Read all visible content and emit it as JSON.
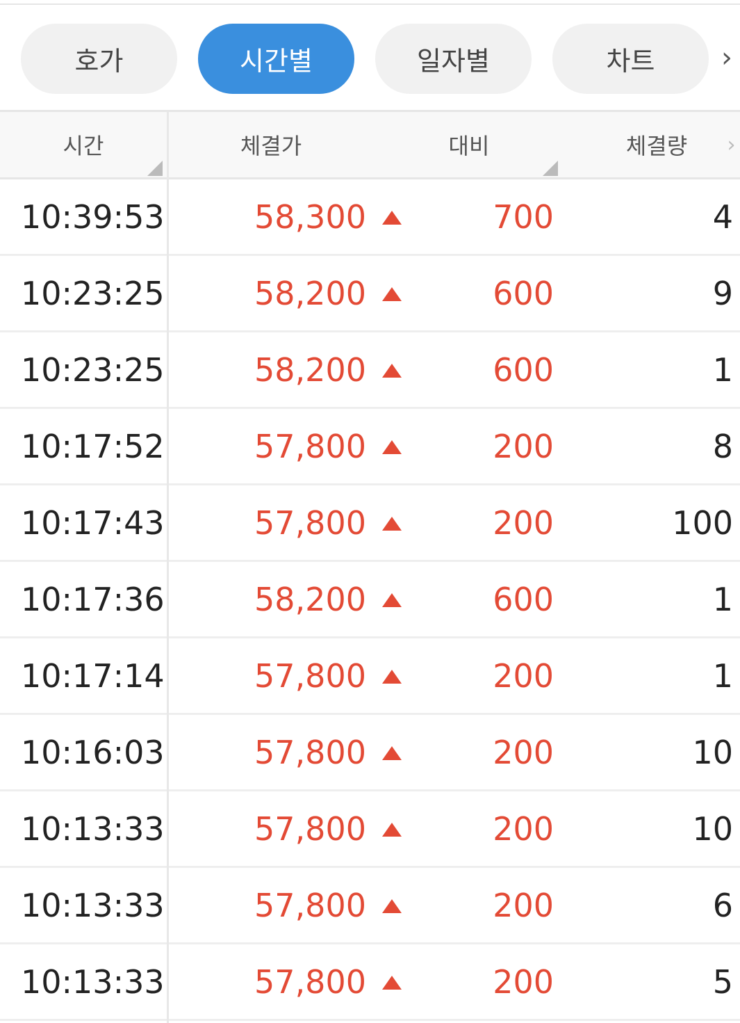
{
  "tabs": [
    {
      "label": "호가",
      "active": false
    },
    {
      "label": "시간별",
      "active": true
    },
    {
      "label": "일자별",
      "active": false
    },
    {
      "label": "차트",
      "active": false
    }
  ],
  "tabs_more_icon": "chevron-right-icon",
  "columns": [
    "시간",
    "체결가",
    "대비",
    "체결량"
  ],
  "colors": {
    "up": "#e34a35",
    "accent": "#3a8fde"
  },
  "rows": [
    {
      "time": "10:39:53",
      "price": "58,300",
      "diff": "700",
      "volume": "4"
    },
    {
      "time": "10:23:25",
      "price": "58,200",
      "diff": "600",
      "volume": "9"
    },
    {
      "time": "10:23:25",
      "price": "58,200",
      "diff": "600",
      "volume": "1"
    },
    {
      "time": "10:17:52",
      "price": "57,800",
      "diff": "200",
      "volume": "8"
    },
    {
      "time": "10:17:43",
      "price": "57,800",
      "diff": "200",
      "volume": "100"
    },
    {
      "time": "10:17:36",
      "price": "58,200",
      "diff": "600",
      "volume": "1"
    },
    {
      "time": "10:17:14",
      "price": "57,800",
      "diff": "200",
      "volume": "1"
    },
    {
      "time": "10:16:03",
      "price": "57,800",
      "diff": "200",
      "volume": "10"
    },
    {
      "time": "10:13:33",
      "price": "57,800",
      "diff": "200",
      "volume": "10"
    },
    {
      "time": "10:13:33",
      "price": "57,800",
      "diff": "200",
      "volume": "6"
    },
    {
      "time": "10:13:33",
      "price": "57,800",
      "diff": "200",
      "volume": "5"
    }
  ]
}
